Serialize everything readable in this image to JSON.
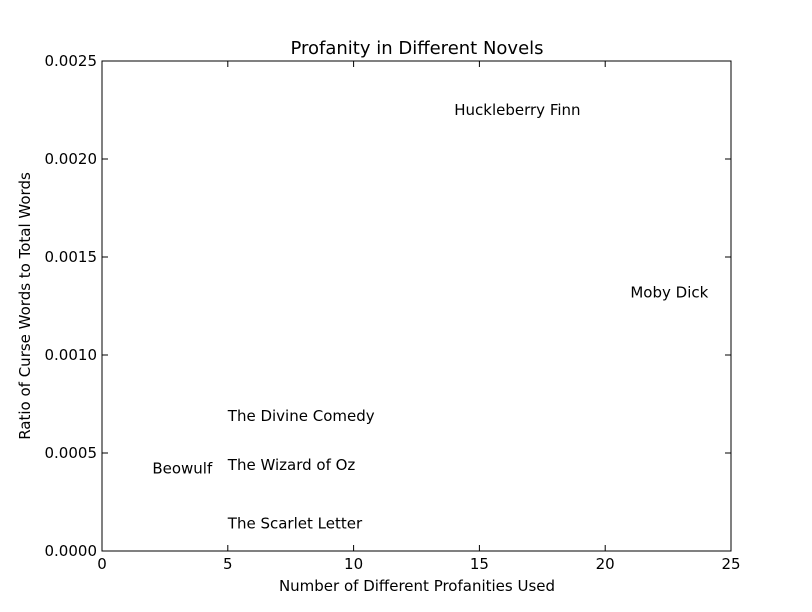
{
  "chart_data": {
    "type": "scatter",
    "title": "Profanity in Different Novels",
    "xlabel": "Number of Different Profanities Used",
    "ylabel": "Ratio of Curse Words to Total Words",
    "xlim": [
      0,
      25
    ],
    "ylim": [
      0,
      0.0025
    ],
    "x_ticks": [
      "0",
      "5",
      "10",
      "15",
      "20",
      "25"
    ],
    "y_ticks": [
      "0.0000",
      "0.0005",
      "0.0010",
      "0.0015",
      "0.0020",
      "0.0025"
    ],
    "grid": false,
    "points": [
      {
        "label": "Huckleberry Finn",
        "x": 14,
        "y": 0.00225
      },
      {
        "label": "Moby Dick",
        "x": 21,
        "y": 0.00132
      },
      {
        "label": "The Divine Comedy",
        "x": 5,
        "y": 0.00069
      },
      {
        "label": "The Wizard of Oz",
        "x": 5,
        "y": 0.00044
      },
      {
        "label": "Beowulf",
        "x": 2,
        "y": 0.00042
      },
      {
        "label": "The Scarlet Letter",
        "x": 5,
        "y": 0.00014
      }
    ]
  }
}
